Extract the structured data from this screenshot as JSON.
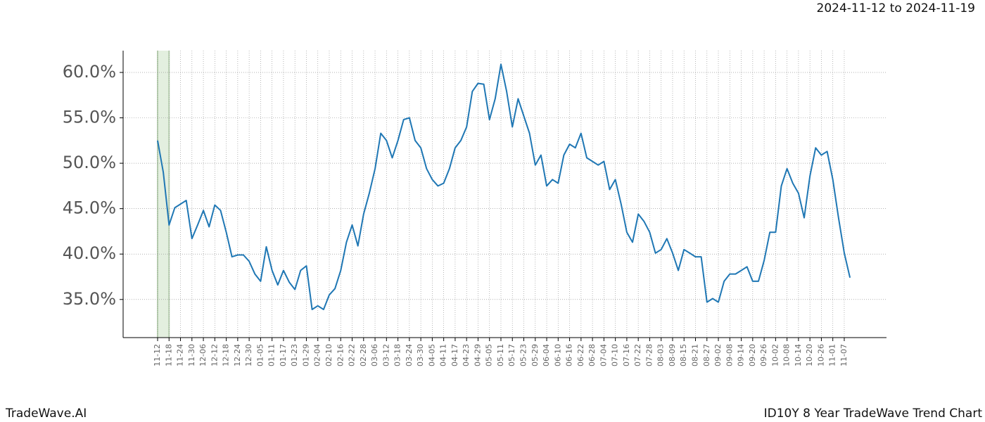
{
  "chart_data": {
    "type": "line",
    "header": "2024-11-12 to 2024-11-19",
    "brand": "TradeWave.AI",
    "title": "ID10Y 8 Year TradeWave Trend Chart",
    "categories": [
      "11-12",
      null,
      "11-18",
      null,
      "11-24",
      null,
      "11-30",
      null,
      "12-06",
      null,
      "12-12",
      null,
      "12-18",
      null,
      "12-24",
      null,
      "12-30",
      null,
      "01-05",
      null,
      "01-11",
      null,
      "01-17",
      null,
      "01-23",
      null,
      "01-29",
      null,
      "02-04",
      null,
      "02-10",
      null,
      "02-16",
      null,
      "02-22",
      null,
      "02-28",
      null,
      "03-06",
      null,
      "03-12",
      null,
      "03-18",
      null,
      "03-24",
      null,
      "03-30",
      null,
      "04-05",
      null,
      "04-11",
      null,
      "04-17",
      null,
      "04-23",
      null,
      "04-29",
      null,
      "05-05",
      null,
      "05-11",
      null,
      "05-17",
      null,
      "05-23",
      null,
      "05-29",
      null,
      "06-04",
      null,
      "06-10",
      null,
      "06-16",
      null,
      "06-22",
      null,
      "06-28",
      null,
      "07-04",
      null,
      "07-10",
      null,
      "07-16",
      null,
      "07-22",
      null,
      "07-28",
      null,
      "08-03",
      null,
      "08-09",
      null,
      "08-15",
      null,
      "08-21",
      null,
      "08-27",
      null,
      "09-02",
      null,
      "09-08",
      null,
      "09-14",
      null,
      "09-20",
      null,
      "09-26",
      null,
      "10-02",
      null,
      "10-08",
      null,
      "10-14",
      null,
      "10-20",
      null,
      "10-26",
      null,
      "11-01",
      null,
      "11-07",
      null
    ],
    "values": [
      52.5,
      49,
      43.2,
      45.1,
      45.5,
      45.9,
      41.7,
      43.2,
      44.8,
      43.0,
      45.4,
      44.8,
      42.4,
      39.7,
      39.9,
      39.9,
      39.2,
      37.8,
      37.0,
      40.8,
      38.2,
      36.6,
      38.2,
      36.9,
      36.1,
      38.2,
      38.7,
      33.9,
      34.3,
      33.9,
      35.5,
      36.2,
      38.2,
      41.3,
      43.2,
      40.9,
      44.4,
      46.7,
      49.4,
      53.3,
      52.5,
      50.6,
      52.5,
      54.8,
      55.0,
      52.5,
      51.7,
      49.4,
      48.2,
      47.5,
      47.8,
      49.4,
      51.7,
      52.5,
      54.0,
      57.9,
      58.8,
      58.7,
      54.8,
      57.1,
      60.9,
      57.9,
      54.0,
      57.1,
      55.2,
      53.3,
      49.8,
      50.9,
      47.5,
      48.2,
      47.8,
      50.9,
      52.1,
      51.7,
      53.3,
      50.6,
      50.2,
      49.8,
      50.2,
      47.1,
      48.2,
      45.5,
      42.4,
      41.3,
      44.4,
      43.6,
      42.4,
      40.1,
      40.5,
      41.7,
      40.1,
      38.2,
      40.5,
      40.1,
      39.7,
      39.7,
      34.7,
      35.1,
      34.7,
      37.0,
      37.8,
      37.8,
      38.2,
      38.6,
      37.0,
      37.0,
      39.3,
      42.4,
      42.4,
      47.5,
      49.4,
      47.8,
      46.7,
      44.0,
      48.6,
      51.7,
      50.9,
      51.3,
      48.2,
      44.0,
      40.1,
      37.4
    ],
    "color": "#1f77b4",
    "highlight_range": [
      "11-12",
      "11-18"
    ],
    "highlight_color": "#e3efdf",
    "ylim": [
      30.8,
      62.4
    ],
    "yticks": [
      {
        "value": 35,
        "label": "35.0%"
      },
      {
        "value": 40,
        "label": "40.0%"
      },
      {
        "value": 45,
        "label": "45.0%"
      },
      {
        "value": 50,
        "label": "50.0%"
      },
      {
        "value": 55,
        "label": "55.0%"
      },
      {
        "value": 60,
        "label": "60.0%"
      }
    ],
    "grid": true
  }
}
